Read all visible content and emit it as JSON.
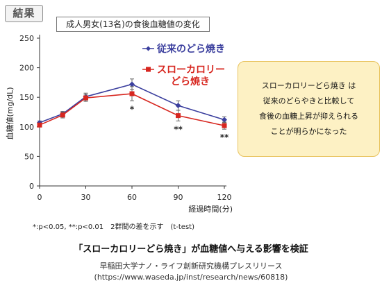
{
  "badge": "結果",
  "callout": [
    "スローカロリーどら焼き は",
    "従来のどらやきと比較して",
    "食後の血糖上昇が抑えられる",
    "ことが明らかになった"
  ],
  "footnote": "*:p<0.05, **:p<0.01　2群間の差を示す　(t-test)",
  "caption": {
    "main": "「スローカロリーどら焼き」が血糖値へ与える影響を検証",
    "source": "早稲田大学ナノ・ライフ創新研究機構プレスリリース",
    "url": "(https://www.waseda.jp/inst/research/news/60818)"
  },
  "chart_data": {
    "type": "line",
    "title": "成人男女(13名)の食後血糖値の変化",
    "xlabel": "経過時間(分)",
    "ylabel": "血糖値(mg/dL)",
    "x": [
      0,
      15,
      30,
      60,
      90,
      120
    ],
    "xticks": [
      "0",
      "30",
      "60",
      "90",
      "120"
    ],
    "xtick_values": [
      0,
      30,
      60,
      90,
      120
    ],
    "yticks": [
      "0",
      "50",
      "100",
      "150",
      "200",
      "250"
    ],
    "ytick_values": [
      0,
      50,
      100,
      150,
      200,
      250
    ],
    "xlim": [
      0,
      120
    ],
    "ylim": [
      0,
      250
    ],
    "grid": false,
    "legend_position": "top-right",
    "series": [
      {
        "name": "従来のどら焼き",
        "color": "#3b3f9e",
        "marker": "diamond",
        "values": [
          107,
          122,
          151,
          172,
          136,
          112
        ],
        "errors": [
          3,
          4,
          6,
          9,
          8,
          5
        ]
      },
      {
        "name": "スローカロリー\nどら焼き",
        "color": "#d7261f",
        "marker": "square",
        "values": [
          103,
          120,
          149,
          156,
          119,
          102
        ],
        "errors": [
          3,
          5,
          6,
          12,
          9,
          6
        ]
      }
    ],
    "annotations": [
      {
        "x": 60,
        "text": "*"
      },
      {
        "x": 90,
        "text": "**"
      },
      {
        "x": 120,
        "text": "**"
      }
    ]
  }
}
